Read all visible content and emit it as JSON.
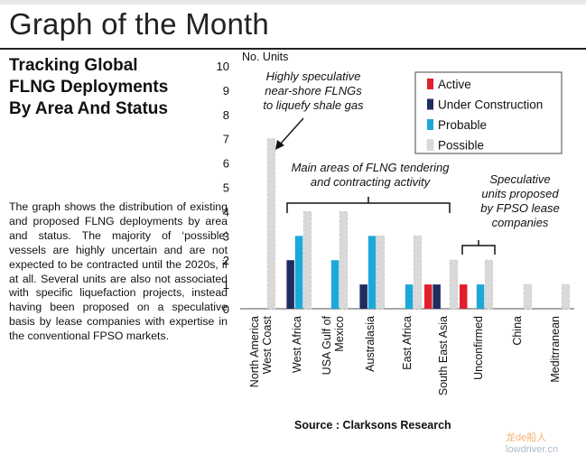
{
  "header": {
    "page_title": "Graph of the Month",
    "subtitle_lines": [
      "Tracking Global",
      "FLNG Deployments",
      "By Area And Status"
    ]
  },
  "description": "The graph shows the distribution of existing and proposed FLNG deployments by area and status. The majority of ‘possible’ vessels are highly uncertain and are not expected to be contracted until the 2020s, if at all. Several units are also not associated with specific liquefaction projects, instead having been proposed on a speculative basis by lease companies with expertise in the conventional FPSO markets.",
  "source": "Source : Clarksons Research",
  "watermark": {
    "a": "龙de船人",
    "b": "lowdriver.cn"
  },
  "chart_data": {
    "type": "bar",
    "ylabel": "No. Units",
    "ylim": [
      0,
      10
    ],
    "yticks": [
      0,
      1,
      2,
      3,
      4,
      5,
      6,
      7,
      8,
      9,
      10
    ],
    "categories": [
      "North America West Coast",
      "West Africa",
      "USA Gulf of Mexico",
      "Australasia",
      "East Africa",
      "South East Asia",
      "Unconfirmed",
      "China",
      "Meditrranean"
    ],
    "category_label_lines": [
      [
        "North America",
        "West Coast"
      ],
      [
        "West Africa"
      ],
      [
        "USA Gulf of",
        "Mexico"
      ],
      [
        "Australasia"
      ],
      [
        "East Africa"
      ],
      [
        "South East Asia"
      ],
      [
        "Unconfirmed"
      ],
      [
        "China"
      ],
      [
        "Meditrranean"
      ]
    ],
    "series": [
      {
        "name": "Active",
        "color": "#e0202c",
        "values": [
          0,
          0,
          0,
          0,
          0,
          1,
          1,
          0,
          0
        ]
      },
      {
        "name": "Under Construction",
        "color": "#1f2d5e",
        "values": [
          0,
          2,
          0,
          1,
          0,
          1,
          0,
          0,
          0
        ]
      },
      {
        "name": "Probable",
        "color": "#1ea8d8",
        "values": [
          0,
          3,
          2,
          3,
          1,
          0,
          1,
          0,
          0
        ]
      },
      {
        "name": "Possible",
        "color": "#d9d9d9",
        "values": [
          7,
          4,
          4,
          3,
          3,
          2,
          2,
          1,
          1
        ]
      }
    ],
    "legend_position": "top-right",
    "grid": false,
    "annotations": [
      {
        "id": "nearshore",
        "lines": [
          "Highly speculative",
          "near-shore FLNGs",
          "to liquefy shale gas"
        ]
      },
      {
        "id": "tendering",
        "lines": [
          "Main areas of FLNG tendering",
          "and contracting activity"
        ]
      },
      {
        "id": "lease",
        "lines": [
          "Speculative",
          "units proposed",
          "by FPSO lease",
          "companies"
        ]
      }
    ]
  }
}
